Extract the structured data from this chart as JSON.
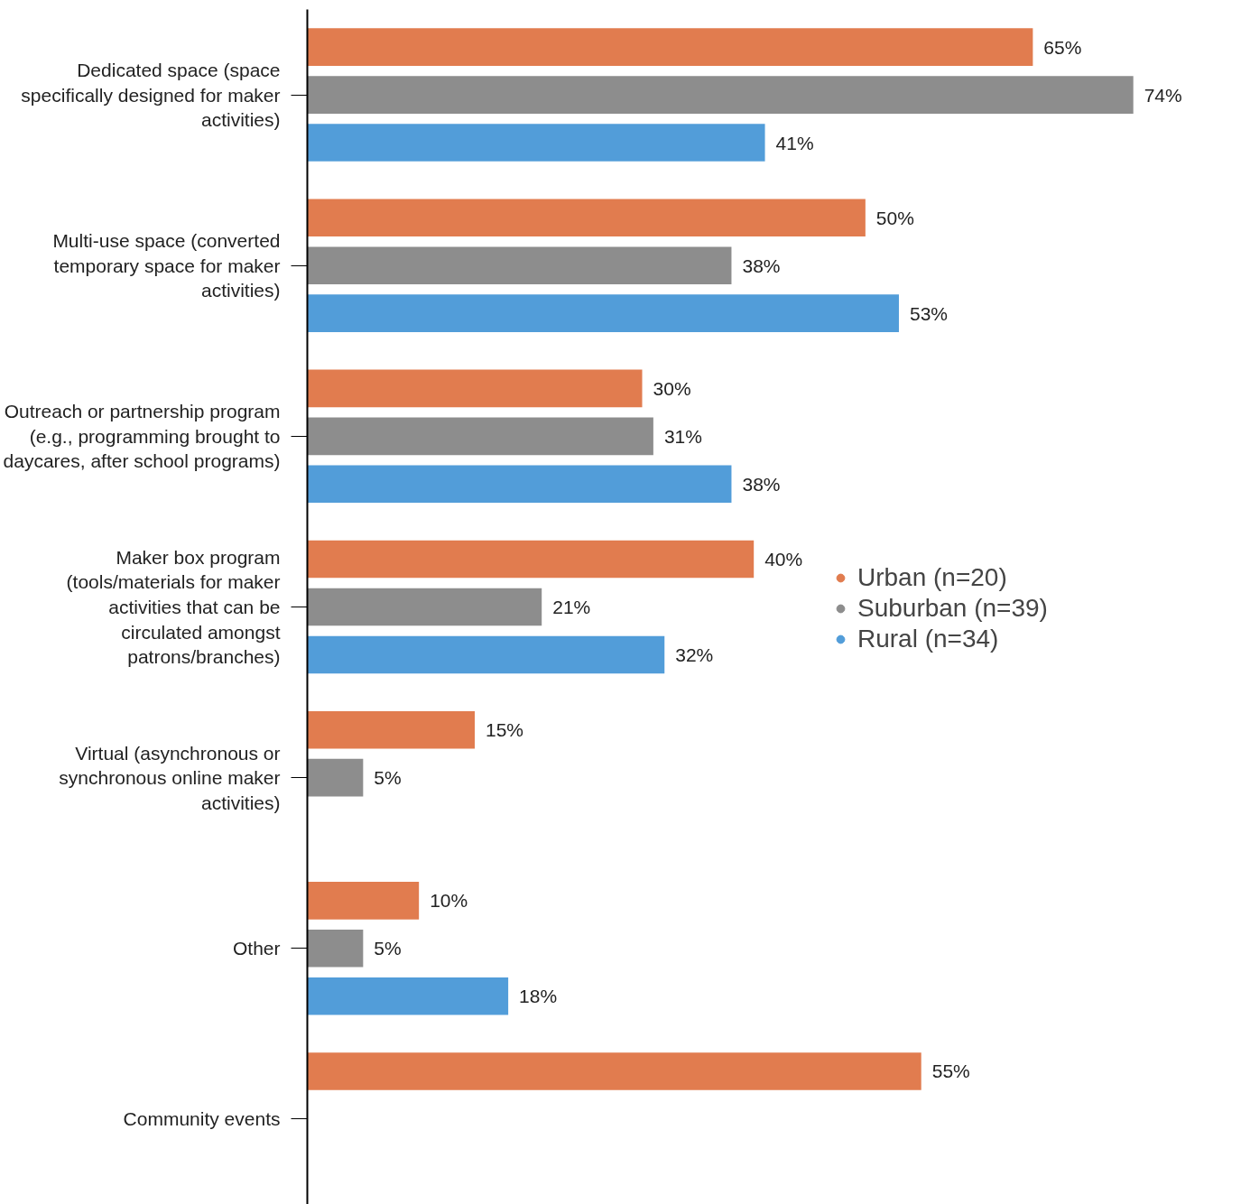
{
  "chart_data": {
    "type": "bar",
    "orientation": "horizontal",
    "categories": [
      "Dedicated space (space specifically designed for maker activities)",
      "Multi-use space (converted temporary space for maker activities)",
      "Outreach or partnership program (e.g., programming brought to daycares, after school programs)",
      "Maker box program (tools/materials for maker activities that can be circulated amongst patrons/branches)",
      "Virtual (asynchronous or synchronous online maker activities)",
      "Other",
      "Community events"
    ],
    "series": [
      {
        "name": "Urban (n=20)",
        "color": "#e17c4f",
        "values": [
          65,
          50,
          30,
          40,
          15,
          10,
          55
        ],
        "value_labels": [
          "65%",
          "50%",
          "30%",
          "40%",
          "15%",
          "10%",
          "55%"
        ]
      },
      {
        "name": "Suburban (n=39)",
        "color": "#8d8d8d",
        "values": [
          74,
          38,
          31,
          21,
          5,
          5,
          null
        ],
        "value_labels": [
          "74%",
          "38%",
          "31%",
          "21%",
          "5%",
          "5%",
          null
        ]
      },
      {
        "name": "Rural (n=34)",
        "color": "#529dd9",
        "values": [
          41,
          53,
          38,
          32,
          null,
          18,
          null
        ],
        "value_labels": [
          "41%",
          "53%",
          "38%",
          "32%",
          null,
          "18%",
          null
        ]
      }
    ],
    "tick_labels": "y",
    "grid": false,
    "legend": "right"
  }
}
